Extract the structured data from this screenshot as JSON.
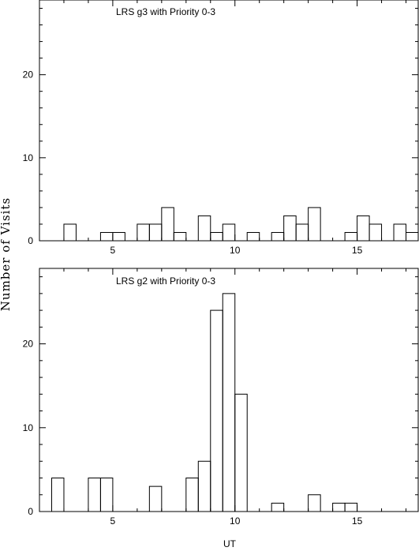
{
  "chart_data": [
    {
      "type": "bar",
      "style": "step-histogram",
      "title": "LRS g3 with Priority 0-3",
      "xlabel": "",
      "ylabel": "Number of Visits",
      "xlim": [
        2,
        17.5
      ],
      "ylim": [
        0,
        29
      ],
      "x_ticks": [
        5,
        10,
        15
      ],
      "y_ticks": [
        0,
        10,
        20
      ],
      "bin_width": 0.5,
      "bins": [
        {
          "x0": 3.0,
          "value": 2
        },
        {
          "x0": 3.5,
          "value": 0
        },
        {
          "x0": 4.0,
          "value": 0
        },
        {
          "x0": 4.5,
          "value": 1
        },
        {
          "x0": 5.0,
          "value": 1
        },
        {
          "x0": 5.5,
          "value": 0
        },
        {
          "x0": 6.0,
          "value": 2
        },
        {
          "x0": 6.5,
          "value": 2
        },
        {
          "x0": 7.0,
          "value": 4
        },
        {
          "x0": 7.5,
          "value": 1
        },
        {
          "x0": 8.0,
          "value": 0
        },
        {
          "x0": 8.5,
          "value": 3
        },
        {
          "x0": 9.0,
          "value": 1
        },
        {
          "x0": 9.5,
          "value": 2
        },
        {
          "x0": 10.0,
          "value": 0
        },
        {
          "x0": 10.5,
          "value": 1
        },
        {
          "x0": 11.0,
          "value": 0
        },
        {
          "x0": 11.5,
          "value": 1
        },
        {
          "x0": 12.0,
          "value": 3
        },
        {
          "x0": 12.5,
          "value": 2
        },
        {
          "x0": 13.0,
          "value": 4
        },
        {
          "x0": 13.5,
          "value": 0
        },
        {
          "x0": 14.0,
          "value": 0
        },
        {
          "x0": 14.5,
          "value": 1
        },
        {
          "x0": 15.0,
          "value": 3
        },
        {
          "x0": 15.5,
          "value": 2
        },
        {
          "x0": 16.0,
          "value": 0
        },
        {
          "x0": 16.5,
          "value": 2
        },
        {
          "x0": 17.0,
          "value": 1
        }
      ]
    },
    {
      "type": "bar",
      "style": "step-histogram",
      "title": "LRS g2 with Priority 0-3",
      "xlabel": "UT",
      "ylabel": "Number of Visits",
      "xlim": [
        2,
        17.5
      ],
      "ylim": [
        0,
        29
      ],
      "x_ticks": [
        5,
        10,
        15
      ],
      "y_ticks": [
        0,
        10,
        20
      ],
      "bin_width": 0.5,
      "bins": [
        {
          "x0": 2.5,
          "value": 4
        },
        {
          "x0": 3.0,
          "value": 0
        },
        {
          "x0": 3.5,
          "value": 0
        },
        {
          "x0": 4.0,
          "value": 4
        },
        {
          "x0": 4.5,
          "value": 4
        },
        {
          "x0": 5.0,
          "value": 0
        },
        {
          "x0": 5.5,
          "value": 0
        },
        {
          "x0": 6.0,
          "value": 0
        },
        {
          "x0": 6.5,
          "value": 3
        },
        {
          "x0": 7.0,
          "value": 0
        },
        {
          "x0": 7.5,
          "value": 0
        },
        {
          "x0": 8.0,
          "value": 4
        },
        {
          "x0": 8.5,
          "value": 6
        },
        {
          "x0": 9.0,
          "value": 24
        },
        {
          "x0": 9.5,
          "value": 26
        },
        {
          "x0": 10.0,
          "value": 14
        },
        {
          "x0": 10.5,
          "value": 0
        },
        {
          "x0": 11.0,
          "value": 0
        },
        {
          "x0": 11.5,
          "value": 1
        },
        {
          "x0": 12.0,
          "value": 0
        },
        {
          "x0": 12.5,
          "value": 0
        },
        {
          "x0": 13.0,
          "value": 2
        },
        {
          "x0": 13.5,
          "value": 0
        },
        {
          "x0": 14.0,
          "value": 1
        },
        {
          "x0": 14.5,
          "value": 1
        }
      ]
    }
  ]
}
